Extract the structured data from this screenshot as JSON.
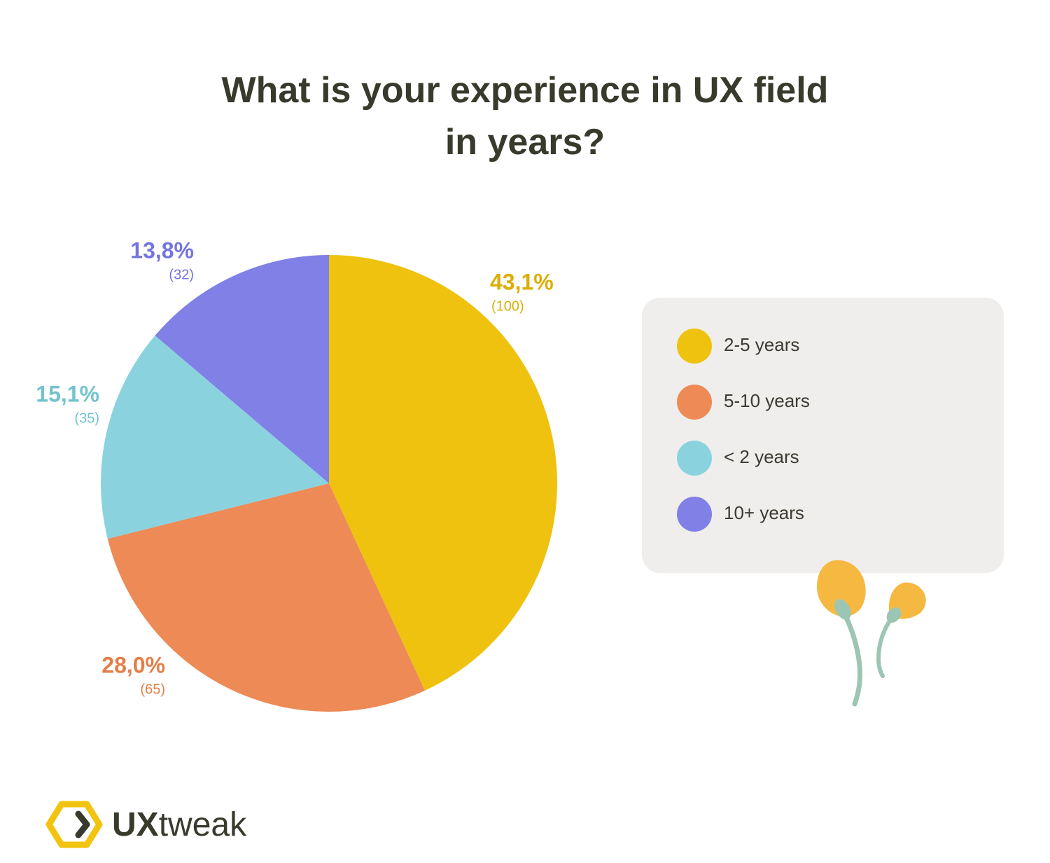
{
  "chart_data": {
    "type": "pie",
    "title": "What is your experience in UX field\nin years?",
    "categories": [
      "2-5 years",
      "5-10 years",
      "< 2 years",
      "10+ years"
    ],
    "values": [
      43.1,
      28.0,
      15.1,
      13.8
    ],
    "value_labels": [
      "43,1%",
      "28,0%",
      "15,1%",
      "13,8%"
    ],
    "counts": [
      100,
      65,
      35,
      32
    ],
    "count_labels": [
      "(100)",
      "(65)",
      "(35)",
      "(32)"
    ],
    "colors": [
      "#eec20f",
      "#ed8a56",
      "#8ad3de",
      "#8080e6"
    ],
    "label_colors": [
      "#dcae05",
      "#e57d47",
      "#72c3ce",
      "#7474e0"
    ],
    "legend": "right"
  },
  "logo": {
    "bold": "UX",
    "light": "tweak"
  }
}
